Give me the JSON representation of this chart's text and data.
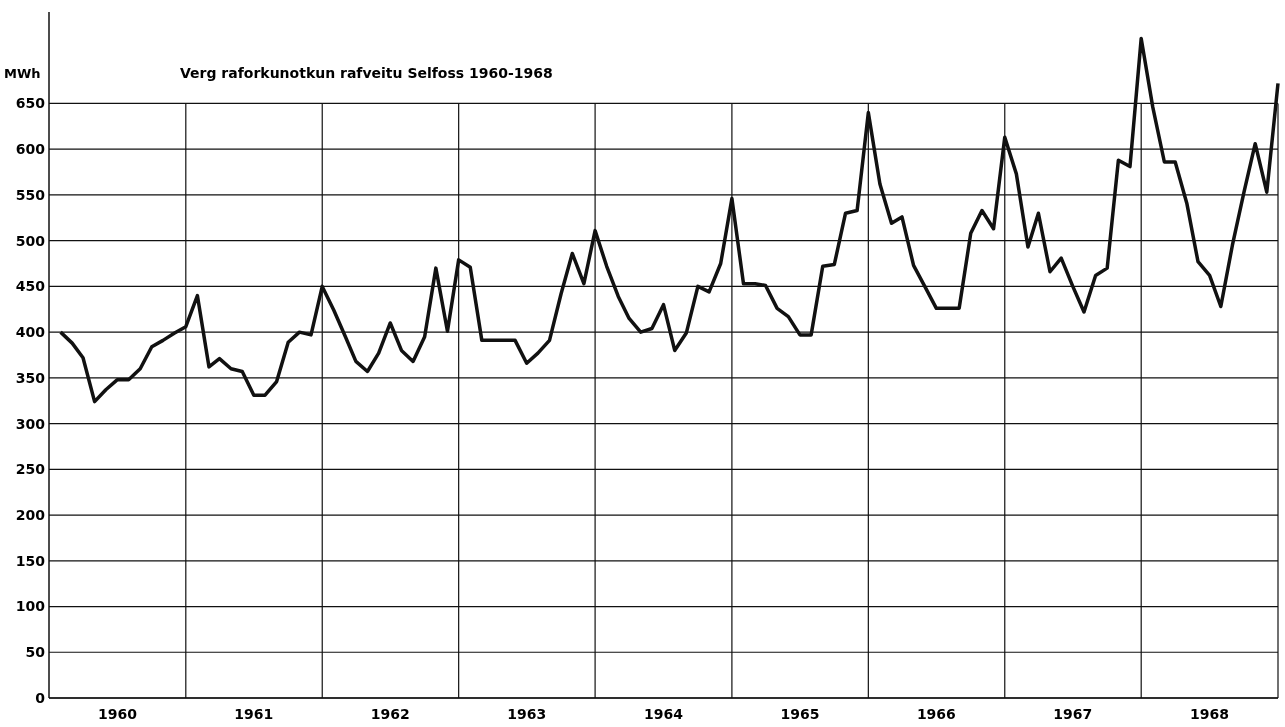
{
  "chart_data": {
    "type": "line",
    "title": "Verg raforkunotkun rafveitu Selfoss 1960-1968",
    "ylabel": "MWh",
    "x": [
      "1960-01",
      "1960-02",
      "1960-03",
      "1960-04",
      "1960-05",
      "1960-06",
      "1960-07",
      "1960-08",
      "1960-09",
      "1960-10",
      "1960-11",
      "1960-12",
      "1961-01",
      "1961-02",
      "1961-03",
      "1961-04",
      "1961-05",
      "1961-06",
      "1961-07",
      "1961-08",
      "1961-09",
      "1961-10",
      "1961-11",
      "1961-12",
      "1962-01",
      "1962-02",
      "1962-03",
      "1962-04",
      "1962-05",
      "1962-06",
      "1962-07",
      "1962-08",
      "1962-09",
      "1962-10",
      "1962-11",
      "1962-12",
      "1963-01",
      "1963-02",
      "1963-03",
      "1963-04",
      "1963-05",
      "1963-06",
      "1963-07",
      "1963-08",
      "1963-09",
      "1963-10",
      "1963-11",
      "1963-12",
      "1964-01",
      "1964-02",
      "1964-03",
      "1964-04",
      "1964-05",
      "1964-06",
      "1964-07",
      "1964-08",
      "1964-09",
      "1964-10",
      "1964-11",
      "1964-12",
      "1965-01",
      "1965-02",
      "1965-03",
      "1965-04",
      "1965-05",
      "1965-06",
      "1965-07",
      "1965-08",
      "1965-09",
      "1965-10",
      "1965-11",
      "1965-12",
      "1966-01",
      "1966-02",
      "1966-03",
      "1966-04",
      "1966-05",
      "1966-06",
      "1966-07",
      "1966-08",
      "1966-09",
      "1966-10",
      "1966-11",
      "1966-12",
      "1967-01",
      "1967-02",
      "1967-03",
      "1967-04",
      "1967-05",
      "1967-06",
      "1967-07",
      "1967-08",
      "1967-09",
      "1967-10",
      "1967-11",
      "1967-12",
      "1968-01",
      "1968-02",
      "1968-03",
      "1968-04",
      "1968-05",
      "1968-06",
      "1968-07",
      "1968-08",
      "1968-09",
      "1968-10",
      "1968-11",
      "1968-12"
    ],
    "series": [
      {
        "color": "#111111",
        "values": [
          400,
          388,
          372,
          324,
          337,
          348,
          348,
          360,
          384,
          391,
          399,
          406,
          440,
          362,
          371,
          360,
          357,
          331,
          331,
          346,
          389,
          400,
          397,
          450,
          424,
          395,
          368,
          357,
          377,
          410,
          380,
          368,
          395,
          470,
          401,
          479,
          471,
          391,
          391,
          391,
          391,
          366,
          377,
          391,
          442,
          486,
          453,
          511,
          472,
          439,
          415,
          400,
          404,
          430,
          380,
          399,
          450,
          444,
          475,
          546,
          453,
          453,
          451,
          426,
          417,
          397,
          397,
          472,
          474,
          530,
          533,
          640,
          562,
          519,
          526,
          473,
          450,
          426,
          426,
          426,
          508,
          533,
          513,
          613,
          573,
          493,
          530,
          466,
          481,
          450,
          422,
          462,
          470,
          588,
          581,
          721,
          646,
          586,
          586,
          541,
          477,
          462,
          428,
          495,
          553,
          606,
          553,
          672
        ]
      }
    ],
    "xlim": [
      "1959-12",
      "1968-12"
    ],
    "xticks": [
      {
        "value": "1960-06",
        "label": "1960"
      },
      {
        "value": "1960-12",
        "label": null
      },
      {
        "value": "1961-06",
        "label": "1961"
      },
      {
        "value": "1961-12",
        "label": null
      },
      {
        "value": "1962-06",
        "label": "1962"
      },
      {
        "value": "1962-12",
        "label": null
      },
      {
        "value": "1963-06",
        "label": "1963"
      },
      {
        "value": "1963-12",
        "label": null
      },
      {
        "value": "1964-06",
        "label": "1964"
      },
      {
        "value": "1964-12",
        "label": null
      },
      {
        "value": "1965-06",
        "label": "1965"
      },
      {
        "value": "1965-12",
        "label": null
      },
      {
        "value": "1966-06",
        "label": "1966"
      },
      {
        "value": "1966-12",
        "label": null
      },
      {
        "value": "1967-06",
        "label": "1967"
      },
      {
        "value": "1967-12",
        "label": null
      },
      {
        "value": "1968-06",
        "label": "1968"
      }
    ],
    "ylim": [
      0,
      750
    ],
    "yticks": [
      0,
      50,
      100,
      150,
      200,
      250,
      300,
      350,
      400,
      450,
      500,
      550,
      600,
      650
    ],
    "grid": true,
    "marker": "none",
    "line_style": "solid"
  }
}
